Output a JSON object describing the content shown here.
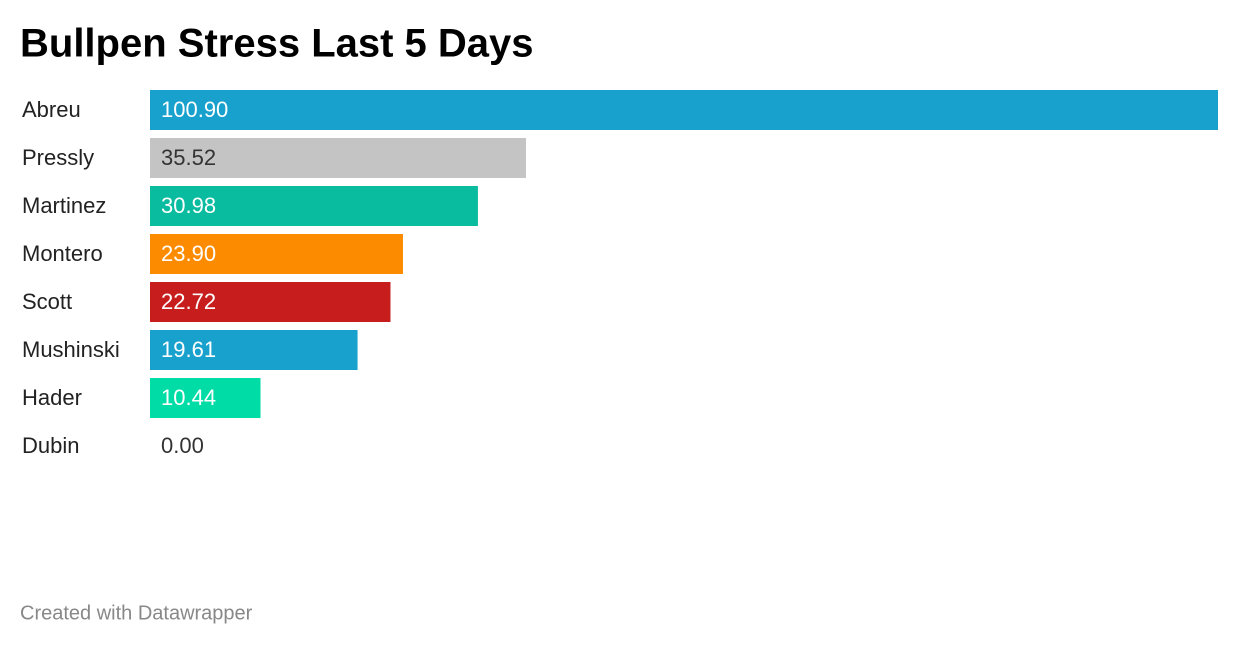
{
  "chart_data": {
    "type": "bar",
    "orientation": "horizontal",
    "title": "Bullpen Stress Last 5 Days",
    "categories": [
      "Abreu",
      "Pressly",
      "Martinez",
      "Montero",
      "Scott",
      "Mushinski",
      "Hader",
      "Dubin"
    ],
    "values": [
      100.9,
      35.52,
      30.98,
      23.9,
      22.72,
      19.61,
      10.44,
      0
    ],
    "value_labels": [
      "100.90",
      "35.52",
      "30.98",
      "23.90",
      "22.72",
      "19.61",
      "10.44",
      "0.00"
    ],
    "colors": [
      "#18a1cd",
      "#c4c4c4",
      "#09bb9f",
      "#fd8b00",
      "#c71e1d",
      "#18a1cd",
      "#00dca6",
      "#18a1cd"
    ],
    "footer": "Created with Datawrapper"
  }
}
